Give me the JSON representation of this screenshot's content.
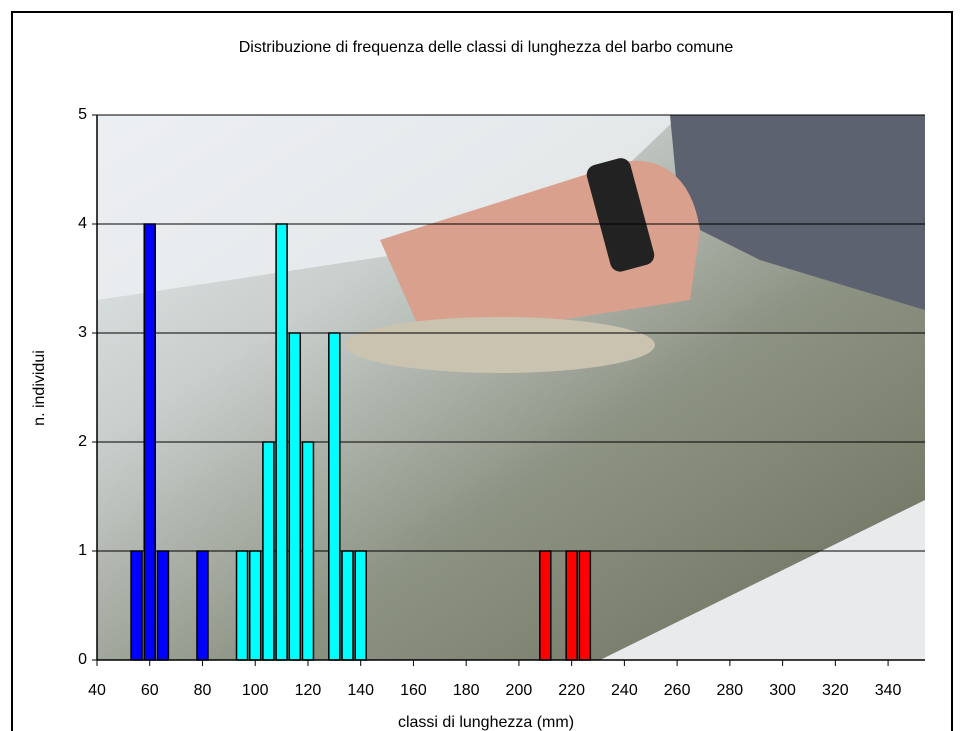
{
  "chart_data": {
    "type": "bar",
    "title": "Distribuzione di frequenza delle classi di lunghezza del barbo comune",
    "x_label": "classi di lunghezza (mm)",
    "y_label": "n. individui",
    "series": [
      {
        "color": "#0000ff",
        "x": [
          55,
          60,
          65,
          80
        ],
        "values": [
          1,
          4,
          1,
          1
        ]
      },
      {
        "color": "#00ffff",
        "x": [
          95,
          100,
          105,
          110,
          115,
          120,
          130,
          135,
          140
        ],
        "values": [
          1,
          1,
          2,
          4,
          3,
          2,
          3,
          1,
          1
        ]
      },
      {
        "color": "#ff0000",
        "x": [
          210,
          220,
          225
        ],
        "values": [
          1,
          1,
          1
        ]
      }
    ],
    "xlim": [
      40,
      354
    ],
    "xticks": [
      40,
      60,
      80,
      100,
      120,
      140,
      160,
      180,
      200,
      220,
      240,
      260,
      280,
      300,
      320,
      340
    ],
    "ylim": [
      0,
      5
    ],
    "yticks": [
      0,
      1,
      2,
      3,
      4,
      5
    ],
    "grid": true
  }
}
